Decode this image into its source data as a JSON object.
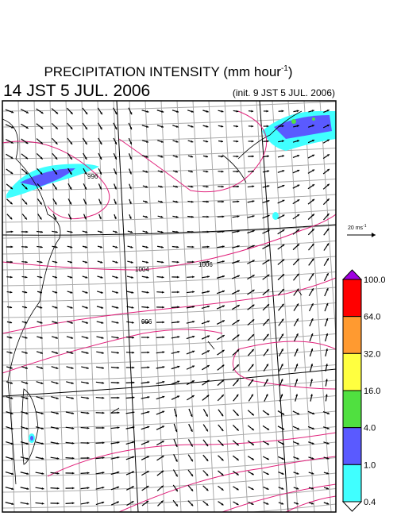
{
  "header": {
    "title": {
      "text": "PRECIPITATION INTENSITY (mm hour",
      "superscript": "-1",
      "close": ")"
    },
    "time": "14 JST 5 JUL. 2006",
    "init": "(init. 9 JST 5 JUL. 2006)"
  },
  "map": {
    "contour_labels": [
      "996",
      "1004",
      "1006",
      "996"
    ]
  },
  "scale_arrow": {
    "text": "20 ms",
    "superscript": "-1"
  },
  "colorbar": {
    "top_color": "#a000e0",
    "bottom_color": "#ffffff",
    "levels": [
      {
        "label": "100.0",
        "color": "#ff0000"
      },
      {
        "label": "64.0",
        "color": "#ff9a30"
      },
      {
        "label": "32.0",
        "color": "#ffff40"
      },
      {
        "label": "16.0",
        "color": "#50e040"
      },
      {
        "label": "4.0",
        "color": "#5a5aff"
      },
      {
        "label": "1.0",
        "color": "#40ffff"
      },
      {
        "label": "0.4"
      }
    ]
  }
}
